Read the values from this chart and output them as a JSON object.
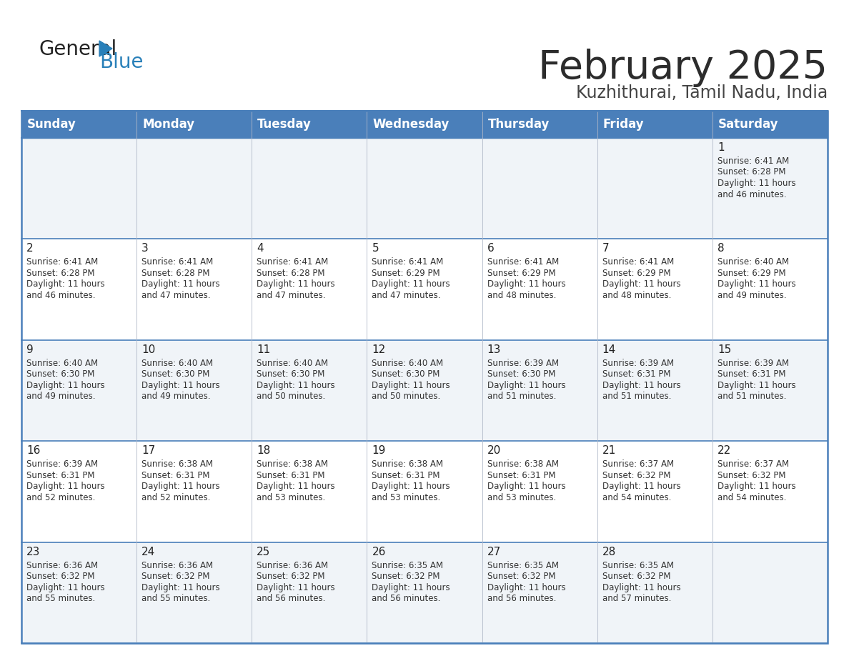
{
  "title": "February 2025",
  "subtitle": "Kuzhithurai, Tamil Nadu, India",
  "header_bg_color": "#4a7fba",
  "header_text_color": "#ffffff",
  "cell_bg_color": "#f0f4f8",
  "cell_bg_white": "#ffffff",
  "border_color": "#4a7fba",
  "grid_color": "#c0c8d8",
  "days_of_week": [
    "Sunday",
    "Monday",
    "Tuesday",
    "Wednesday",
    "Thursday",
    "Friday",
    "Saturday"
  ],
  "title_color": "#2c2c2c",
  "subtitle_color": "#444444",
  "day_number_color": "#222222",
  "cell_text_color": "#333333",
  "logo_general_color": "#222222",
  "logo_blue_color": "#2980b9",
  "calendar": [
    [
      null,
      null,
      null,
      null,
      null,
      null,
      {
        "day": 1,
        "sunrise": "6:41 AM",
        "sunset": "6:28 PM",
        "daylight_hours": 11,
        "daylight_minutes": 46
      }
    ],
    [
      {
        "day": 2,
        "sunrise": "6:41 AM",
        "sunset": "6:28 PM",
        "daylight_hours": 11,
        "daylight_minutes": 46
      },
      {
        "day": 3,
        "sunrise": "6:41 AM",
        "sunset": "6:28 PM",
        "daylight_hours": 11,
        "daylight_minutes": 47
      },
      {
        "day": 4,
        "sunrise": "6:41 AM",
        "sunset": "6:28 PM",
        "daylight_hours": 11,
        "daylight_minutes": 47
      },
      {
        "day": 5,
        "sunrise": "6:41 AM",
        "sunset": "6:29 PM",
        "daylight_hours": 11,
        "daylight_minutes": 47
      },
      {
        "day": 6,
        "sunrise": "6:41 AM",
        "sunset": "6:29 PM",
        "daylight_hours": 11,
        "daylight_minutes": 48
      },
      {
        "day": 7,
        "sunrise": "6:41 AM",
        "sunset": "6:29 PM",
        "daylight_hours": 11,
        "daylight_minutes": 48
      },
      {
        "day": 8,
        "sunrise": "6:40 AM",
        "sunset": "6:29 PM",
        "daylight_hours": 11,
        "daylight_minutes": 49
      }
    ],
    [
      {
        "day": 9,
        "sunrise": "6:40 AM",
        "sunset": "6:30 PM",
        "daylight_hours": 11,
        "daylight_minutes": 49
      },
      {
        "day": 10,
        "sunrise": "6:40 AM",
        "sunset": "6:30 PM",
        "daylight_hours": 11,
        "daylight_minutes": 49
      },
      {
        "day": 11,
        "sunrise": "6:40 AM",
        "sunset": "6:30 PM",
        "daylight_hours": 11,
        "daylight_minutes": 50
      },
      {
        "day": 12,
        "sunrise": "6:40 AM",
        "sunset": "6:30 PM",
        "daylight_hours": 11,
        "daylight_minutes": 50
      },
      {
        "day": 13,
        "sunrise": "6:39 AM",
        "sunset": "6:30 PM",
        "daylight_hours": 11,
        "daylight_minutes": 51
      },
      {
        "day": 14,
        "sunrise": "6:39 AM",
        "sunset": "6:31 PM",
        "daylight_hours": 11,
        "daylight_minutes": 51
      },
      {
        "day": 15,
        "sunrise": "6:39 AM",
        "sunset": "6:31 PM",
        "daylight_hours": 11,
        "daylight_minutes": 51
      }
    ],
    [
      {
        "day": 16,
        "sunrise": "6:39 AM",
        "sunset": "6:31 PM",
        "daylight_hours": 11,
        "daylight_minutes": 52
      },
      {
        "day": 17,
        "sunrise": "6:38 AM",
        "sunset": "6:31 PM",
        "daylight_hours": 11,
        "daylight_minutes": 52
      },
      {
        "day": 18,
        "sunrise": "6:38 AM",
        "sunset": "6:31 PM",
        "daylight_hours": 11,
        "daylight_minutes": 53
      },
      {
        "day": 19,
        "sunrise": "6:38 AM",
        "sunset": "6:31 PM",
        "daylight_hours": 11,
        "daylight_minutes": 53
      },
      {
        "day": 20,
        "sunrise": "6:38 AM",
        "sunset": "6:31 PM",
        "daylight_hours": 11,
        "daylight_minutes": 53
      },
      {
        "day": 21,
        "sunrise": "6:37 AM",
        "sunset": "6:32 PM",
        "daylight_hours": 11,
        "daylight_minutes": 54
      },
      {
        "day": 22,
        "sunrise": "6:37 AM",
        "sunset": "6:32 PM",
        "daylight_hours": 11,
        "daylight_minutes": 54
      }
    ],
    [
      {
        "day": 23,
        "sunrise": "6:36 AM",
        "sunset": "6:32 PM",
        "daylight_hours": 11,
        "daylight_minutes": 55
      },
      {
        "day": 24,
        "sunrise": "6:36 AM",
        "sunset": "6:32 PM",
        "daylight_hours": 11,
        "daylight_minutes": 55
      },
      {
        "day": 25,
        "sunrise": "6:36 AM",
        "sunset": "6:32 PM",
        "daylight_hours": 11,
        "daylight_minutes": 56
      },
      {
        "day": 26,
        "sunrise": "6:35 AM",
        "sunset": "6:32 PM",
        "daylight_hours": 11,
        "daylight_minutes": 56
      },
      {
        "day": 27,
        "sunrise": "6:35 AM",
        "sunset": "6:32 PM",
        "daylight_hours": 11,
        "daylight_minutes": 56
      },
      {
        "day": 28,
        "sunrise": "6:35 AM",
        "sunset": "6:32 PM",
        "daylight_hours": 11,
        "daylight_minutes": 57
      },
      null
    ]
  ]
}
